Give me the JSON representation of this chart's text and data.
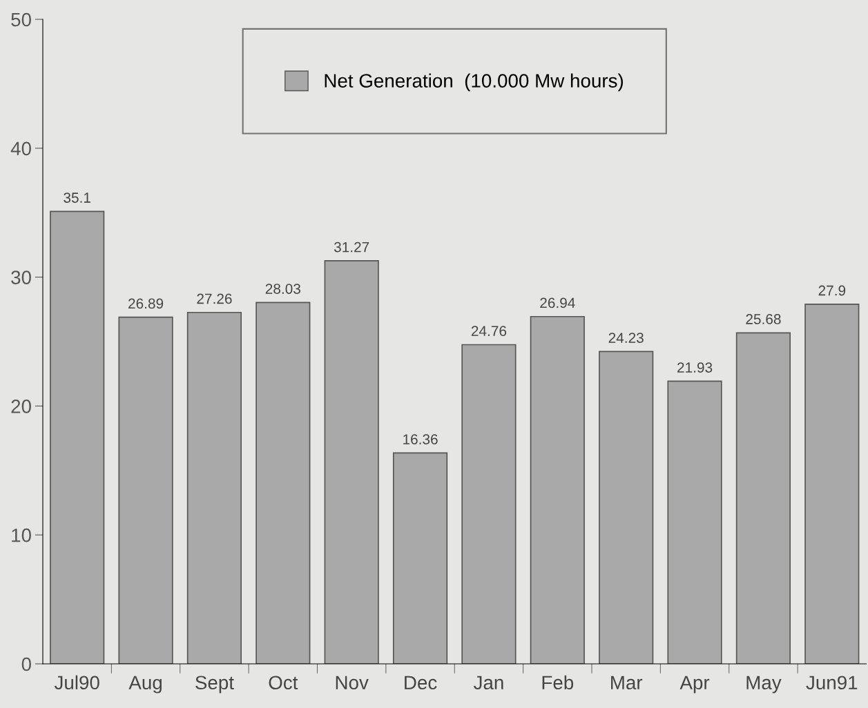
{
  "chart_data": {
    "type": "bar",
    "categories": [
      "Jul90",
      "Aug",
      "Sept",
      "Oct",
      "Nov",
      "Dec",
      "Jan",
      "Feb",
      "Mar",
      "Apr",
      "May",
      "Jun91"
    ],
    "series": [
      {
        "name": "Net Generation  (10.000 Mw hours)",
        "color": "#a9a9a9",
        "values": [
          35.1,
          26.89,
          27.26,
          28.03,
          31.27,
          16.36,
          24.76,
          26.94,
          24.23,
          21.93,
          25.68,
          27.9
        ]
      }
    ],
    "ylim": [
      0,
      50
    ],
    "yticks": [
      0,
      10,
      20,
      30,
      40,
      50
    ],
    "data_labels": true,
    "grid": false,
    "legend": "top"
  }
}
